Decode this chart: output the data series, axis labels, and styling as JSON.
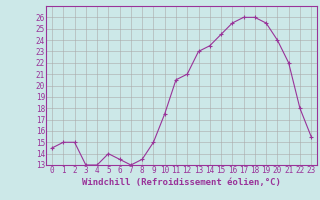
{
  "xlabel": "Windchill (Refroidissement éolien,°C)",
  "x_values": [
    0,
    1,
    2,
    3,
    4,
    5,
    6,
    7,
    8,
    9,
    10,
    11,
    12,
    13,
    14,
    15,
    16,
    17,
    18,
    19,
    20,
    21,
    22,
    23
  ],
  "y_values": [
    14.5,
    15.0,
    15.0,
    13.0,
    13.0,
    14.0,
    13.5,
    13.0,
    13.5,
    15.0,
    17.5,
    20.5,
    21.0,
    23.0,
    23.5,
    24.5,
    25.5,
    26.0,
    26.0,
    25.5,
    24.0,
    22.0,
    18.0,
    15.5
  ],
  "line_color": "#993399",
  "marker": "+",
  "bg_color": "#cce8e8",
  "grid_color": "#aaaaaa",
  "ylim": [
    13,
    27
  ],
  "yticks": [
    13,
    14,
    15,
    16,
    17,
    18,
    19,
    20,
    21,
    22,
    23,
    24,
    25,
    26
  ],
  "xlim": [
    -0.5,
    23.5
  ],
  "tick_color": "#993399",
  "label_color": "#993399",
  "tick_fontsize": 5.5,
  "xlabel_fontsize": 6.5
}
